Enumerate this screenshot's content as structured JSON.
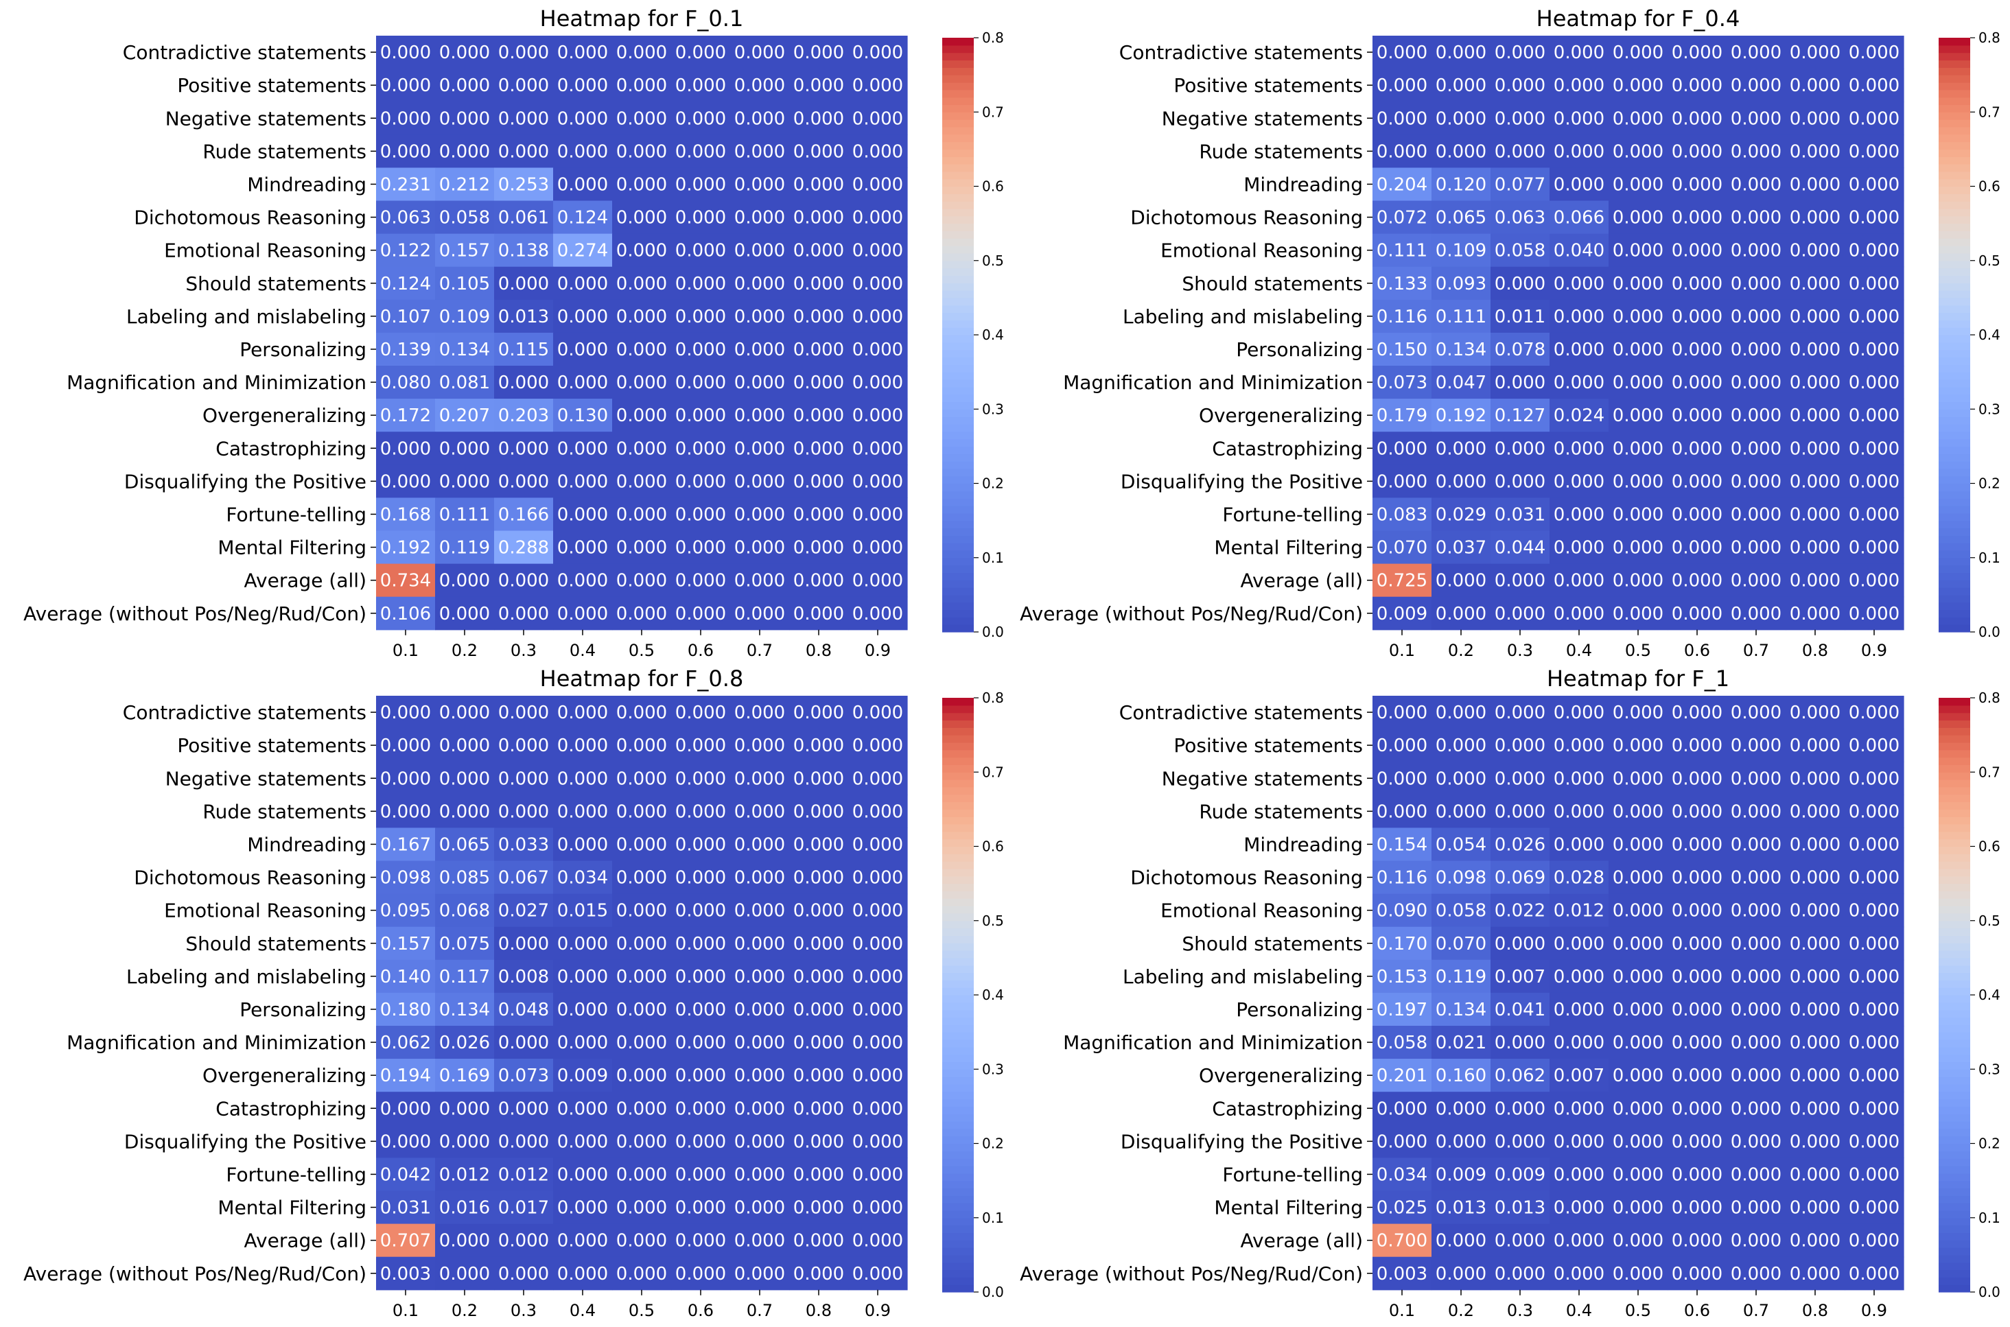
{
  "chart_data": [
    {
      "type": "heatmap",
      "title": "Heatmap for F_0.1",
      "rows": [
        "Contradictive statements",
        "Positive statements",
        "Negative statements",
        "Rude statements",
        "Mindreading",
        "Dichotomous Reasoning",
        "Emotional Reasoning",
        "Should statements",
        "Labeling and mislabeling",
        "Personalizing",
        "Magnification and Minimization",
        "Overgeneralizing",
        "Catastrophizing",
        "Disqualifying the Positive",
        "Fortune-telling",
        "Mental Filtering",
        "Average (all)",
        "Average (without Pos/Neg/Rud/Con)"
      ],
      "columns": [
        "0.1",
        "0.2",
        "0.3",
        "0.4",
        "0.5",
        "0.6",
        "0.7",
        "0.8",
        "0.9"
      ],
      "values": [
        [
          0,
          0,
          0,
          0,
          0,
          0,
          0,
          0,
          0
        ],
        [
          0,
          0,
          0,
          0,
          0,
          0,
          0,
          0,
          0
        ],
        [
          0,
          0,
          0,
          0,
          0,
          0,
          0,
          0,
          0
        ],
        [
          0,
          0,
          0,
          0,
          0,
          0,
          0,
          0,
          0
        ],
        [
          0.231,
          0.212,
          0.253,
          0,
          0,
          0,
          0,
          0,
          0
        ],
        [
          0.063,
          0.058,
          0.061,
          0.124,
          0,
          0,
          0,
          0,
          0
        ],
        [
          0.122,
          0.157,
          0.138,
          0.274,
          0,
          0,
          0,
          0,
          0
        ],
        [
          0.124,
          0.105,
          0,
          0,
          0,
          0,
          0,
          0,
          0
        ],
        [
          0.107,
          0.109,
          0.013,
          0,
          0,
          0,
          0,
          0,
          0
        ],
        [
          0.139,
          0.134,
          0.115,
          0,
          0,
          0,
          0,
          0,
          0
        ],
        [
          0.08,
          0.081,
          0,
          0,
          0,
          0,
          0,
          0,
          0
        ],
        [
          0.172,
          0.207,
          0.203,
          0.13,
          0,
          0,
          0,
          0,
          0
        ],
        [
          0,
          0,
          0,
          0,
          0,
          0,
          0,
          0,
          0
        ],
        [
          0,
          0,
          0,
          0,
          0,
          0,
          0,
          0,
          0
        ],
        [
          0.168,
          0.111,
          0.166,
          0,
          0,
          0,
          0,
          0,
          0
        ],
        [
          0.192,
          0.119,
          0.288,
          0,
          0,
          0,
          0,
          0,
          0
        ],
        [
          0.734,
          0,
          0,
          0,
          0,
          0,
          0,
          0,
          0
        ],
        [
          0.106,
          0,
          0,
          0,
          0,
          0,
          0,
          0,
          0
        ]
      ],
      "colorbar": {
        "range": [
          0,
          0.8
        ],
        "ticks": [
          "0.0",
          "0.1",
          "0.2",
          "0.3",
          "0.4",
          "0.5",
          "0.6",
          "0.7",
          "0.8"
        ],
        "colormap": "coolwarm"
      },
      "value_format": "3 decimals"
    },
    {
      "type": "heatmap",
      "title": "Heatmap for F_0.4",
      "rows": [
        "Contradictive statements",
        "Positive statements",
        "Negative statements",
        "Rude statements",
        "Mindreading",
        "Dichotomous Reasoning",
        "Emotional Reasoning",
        "Should statements",
        "Labeling and mislabeling",
        "Personalizing",
        "Magnification and Minimization",
        "Overgeneralizing",
        "Catastrophizing",
        "Disqualifying the Positive",
        "Fortune-telling",
        "Mental Filtering",
        "Average (all)",
        "Average (without Pos/Neg/Rud/Con)"
      ],
      "columns": [
        "0.1",
        "0.2",
        "0.3",
        "0.4",
        "0.5",
        "0.6",
        "0.7",
        "0.8",
        "0.9"
      ],
      "values": [
        [
          0,
          0,
          0,
          0,
          0,
          0,
          0,
          0,
          0
        ],
        [
          0,
          0,
          0,
          0,
          0,
          0,
          0,
          0,
          0
        ],
        [
          0,
          0,
          0,
          0,
          0,
          0,
          0,
          0,
          0
        ],
        [
          0,
          0,
          0,
          0,
          0,
          0,
          0,
          0,
          0
        ],
        [
          0.204,
          0.12,
          0.077,
          0,
          0,
          0,
          0,
          0,
          0
        ],
        [
          0.072,
          0.065,
          0.063,
          0.066,
          0,
          0,
          0,
          0,
          0
        ],
        [
          0.111,
          0.109,
          0.058,
          0.04,
          0,
          0,
          0,
          0,
          0
        ],
        [
          0.133,
          0.093,
          0,
          0,
          0,
          0,
          0,
          0,
          0
        ],
        [
          0.116,
          0.111,
          0.011,
          0,
          0,
          0,
          0,
          0,
          0
        ],
        [
          0.15,
          0.134,
          0.078,
          0,
          0,
          0,
          0,
          0,
          0
        ],
        [
          0.073,
          0.047,
          0,
          0,
          0,
          0,
          0,
          0,
          0
        ],
        [
          0.179,
          0.192,
          0.127,
          0.024,
          0,
          0,
          0,
          0,
          0
        ],
        [
          0,
          0,
          0,
          0,
          0,
          0,
          0,
          0,
          0
        ],
        [
          0,
          0,
          0,
          0,
          0,
          0,
          0,
          0,
          0
        ],
        [
          0.083,
          0.029,
          0.031,
          0,
          0,
          0,
          0,
          0,
          0
        ],
        [
          0.07,
          0.037,
          0.044,
          0,
          0,
          0,
          0,
          0,
          0
        ],
        [
          0.725,
          0,
          0,
          0,
          0,
          0,
          0,
          0,
          0
        ],
        [
          0.009,
          0,
          0,
          0,
          0,
          0,
          0,
          0,
          0
        ]
      ],
      "colorbar": {
        "range": [
          0,
          0.8
        ],
        "ticks": [
          "0.0",
          "0.1",
          "0.2",
          "0.3",
          "0.4",
          "0.5",
          "0.6",
          "0.7",
          "0.8"
        ],
        "colormap": "coolwarm"
      },
      "value_format": "3 decimals"
    },
    {
      "type": "heatmap",
      "title": "Heatmap for F_0.8",
      "rows": [
        "Contradictive statements",
        "Positive statements",
        "Negative statements",
        "Rude statements",
        "Mindreading",
        "Dichotomous Reasoning",
        "Emotional Reasoning",
        "Should statements",
        "Labeling and mislabeling",
        "Personalizing",
        "Magnification and Minimization",
        "Overgeneralizing",
        "Catastrophizing",
        "Disqualifying the Positive",
        "Fortune-telling",
        "Mental Filtering",
        "Average (all)",
        "Average (without Pos/Neg/Rud/Con)"
      ],
      "columns": [
        "0.1",
        "0.2",
        "0.3",
        "0.4",
        "0.5",
        "0.6",
        "0.7",
        "0.8",
        "0.9"
      ],
      "values": [
        [
          0,
          0,
          0,
          0,
          0,
          0,
          0,
          0,
          0
        ],
        [
          0,
          0,
          0,
          0,
          0,
          0,
          0,
          0,
          0
        ],
        [
          0,
          0,
          0,
          0,
          0,
          0,
          0,
          0,
          0
        ],
        [
          0,
          0,
          0,
          0,
          0,
          0,
          0,
          0,
          0
        ],
        [
          0.167,
          0.065,
          0.033,
          0,
          0,
          0,
          0,
          0,
          0
        ],
        [
          0.098,
          0.085,
          0.067,
          0.034,
          0,
          0,
          0,
          0,
          0
        ],
        [
          0.095,
          0.068,
          0.027,
          0.015,
          0,
          0,
          0,
          0,
          0
        ],
        [
          0.157,
          0.075,
          0,
          0,
          0,
          0,
          0,
          0,
          0
        ],
        [
          0.14,
          0.117,
          0.008,
          0,
          0,
          0,
          0,
          0,
          0
        ],
        [
          0.18,
          0.134,
          0.048,
          0,
          0,
          0,
          0,
          0,
          0
        ],
        [
          0.062,
          0.026,
          0,
          0,
          0,
          0,
          0,
          0,
          0
        ],
        [
          0.194,
          0.169,
          0.073,
          0.009,
          0,
          0,
          0,
          0,
          0
        ],
        [
          0,
          0,
          0,
          0,
          0,
          0,
          0,
          0,
          0
        ],
        [
          0,
          0,
          0,
          0,
          0,
          0,
          0,
          0,
          0
        ],
        [
          0.042,
          0.012,
          0.012,
          0,
          0,
          0,
          0,
          0,
          0
        ],
        [
          0.031,
          0.016,
          0.017,
          0,
          0,
          0,
          0,
          0,
          0
        ],
        [
          0.707,
          0,
          0,
          0,
          0,
          0,
          0,
          0,
          0
        ],
        [
          0.003,
          0,
          0,
          0,
          0,
          0,
          0,
          0,
          0
        ]
      ],
      "colorbar": {
        "range": [
          0,
          0.8
        ],
        "ticks": [
          "0.0",
          "0.1",
          "0.2",
          "0.3",
          "0.4",
          "0.5",
          "0.6",
          "0.7",
          "0.8"
        ],
        "colormap": "coolwarm"
      },
      "value_format": "3 decimals"
    },
    {
      "type": "heatmap",
      "title": "Heatmap for F_1",
      "rows": [
        "Contradictive statements",
        "Positive statements",
        "Negative statements",
        "Rude statements",
        "Mindreading",
        "Dichotomous Reasoning",
        "Emotional Reasoning",
        "Should statements",
        "Labeling and mislabeling",
        "Personalizing",
        "Magnification and Minimization",
        "Overgeneralizing",
        "Catastrophizing",
        "Disqualifying the Positive",
        "Fortune-telling",
        "Mental Filtering",
        "Average (all)",
        "Average (without Pos/Neg/Rud/Con)"
      ],
      "columns": [
        "0.1",
        "0.2",
        "0.3",
        "0.4",
        "0.5",
        "0.6",
        "0.7",
        "0.8",
        "0.9"
      ],
      "values": [
        [
          0,
          0,
          0,
          0,
          0,
          0,
          0,
          0,
          0
        ],
        [
          0,
          0,
          0,
          0,
          0,
          0,
          0,
          0,
          0
        ],
        [
          0,
          0,
          0,
          0,
          0,
          0,
          0,
          0,
          0
        ],
        [
          0,
          0,
          0,
          0,
          0,
          0,
          0,
          0,
          0
        ],
        [
          0.154,
          0.054,
          0.026,
          0,
          0,
          0,
          0,
          0,
          0
        ],
        [
          0.116,
          0.098,
          0.069,
          0.028,
          0,
          0,
          0,
          0,
          0
        ],
        [
          0.09,
          0.058,
          0.022,
          0.012,
          0,
          0,
          0,
          0,
          0
        ],
        [
          0.17,
          0.07,
          0,
          0,
          0,
          0,
          0,
          0,
          0
        ],
        [
          0.153,
          0.119,
          0.007,
          0,
          0,
          0,
          0,
          0,
          0
        ],
        [
          0.197,
          0.134,
          0.041,
          0,
          0,
          0,
          0,
          0,
          0
        ],
        [
          0.058,
          0.021,
          0,
          0,
          0,
          0,
          0,
          0,
          0
        ],
        [
          0.201,
          0.16,
          0.062,
          0.007,
          0,
          0,
          0,
          0,
          0
        ],
        [
          0,
          0,
          0,
          0,
          0,
          0,
          0,
          0,
          0
        ],
        [
          0,
          0,
          0,
          0,
          0,
          0,
          0,
          0,
          0
        ],
        [
          0.034,
          0.009,
          0.009,
          0,
          0,
          0,
          0,
          0,
          0
        ],
        [
          0.025,
          0.013,
          0.013,
          0,
          0,
          0,
          0,
          0,
          0
        ],
        [
          0.7,
          0,
          0,
          0,
          0,
          0,
          0,
          0,
          0
        ],
        [
          0.003,
          0,
          0,
          0,
          0,
          0,
          0,
          0,
          0
        ]
      ],
      "colorbar": {
        "range": [
          0,
          0.8
        ],
        "ticks": [
          "0.0",
          "0.1",
          "0.2",
          "0.3",
          "0.4",
          "0.5",
          "0.6",
          "0.7",
          "0.8"
        ],
        "colormap": "coolwarm"
      },
      "value_format": "3 decimals"
    }
  ]
}
